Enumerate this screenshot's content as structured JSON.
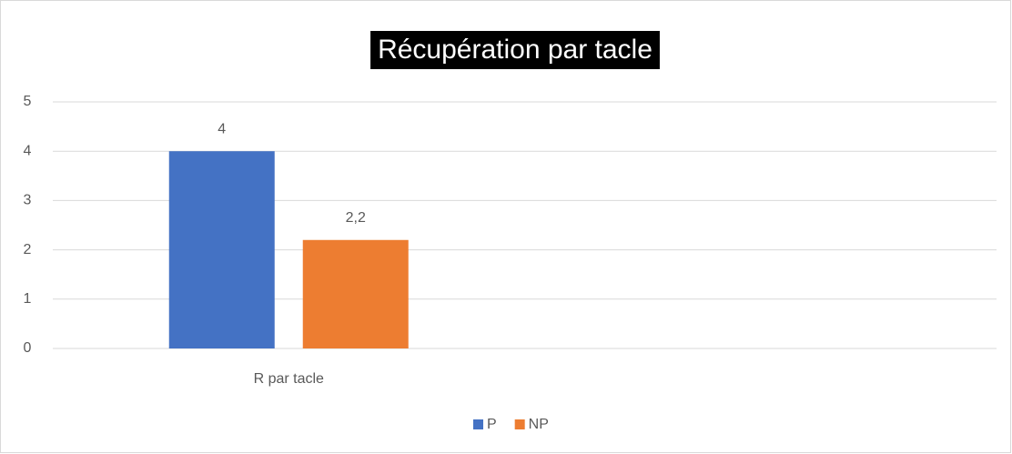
{
  "chart_data": {
    "type": "bar",
    "title": "Récupération par tacle",
    "categories": [
      "R par tacle",
      null
    ],
    "series": [
      {
        "name": "P",
        "color": "#4472c4",
        "values": [
          4,
          null
        ]
      },
      {
        "name": "NP",
        "color": "#ed7d31",
        "values": [
          2.2,
          null
        ],
        "value_labels": [
          "2,2",
          null
        ]
      }
    ],
    "ylim": [
      0,
      5
    ],
    "yticks": [
      0,
      1,
      2,
      3,
      4,
      5
    ],
    "grid": true,
    "legend": "bottom"
  }
}
